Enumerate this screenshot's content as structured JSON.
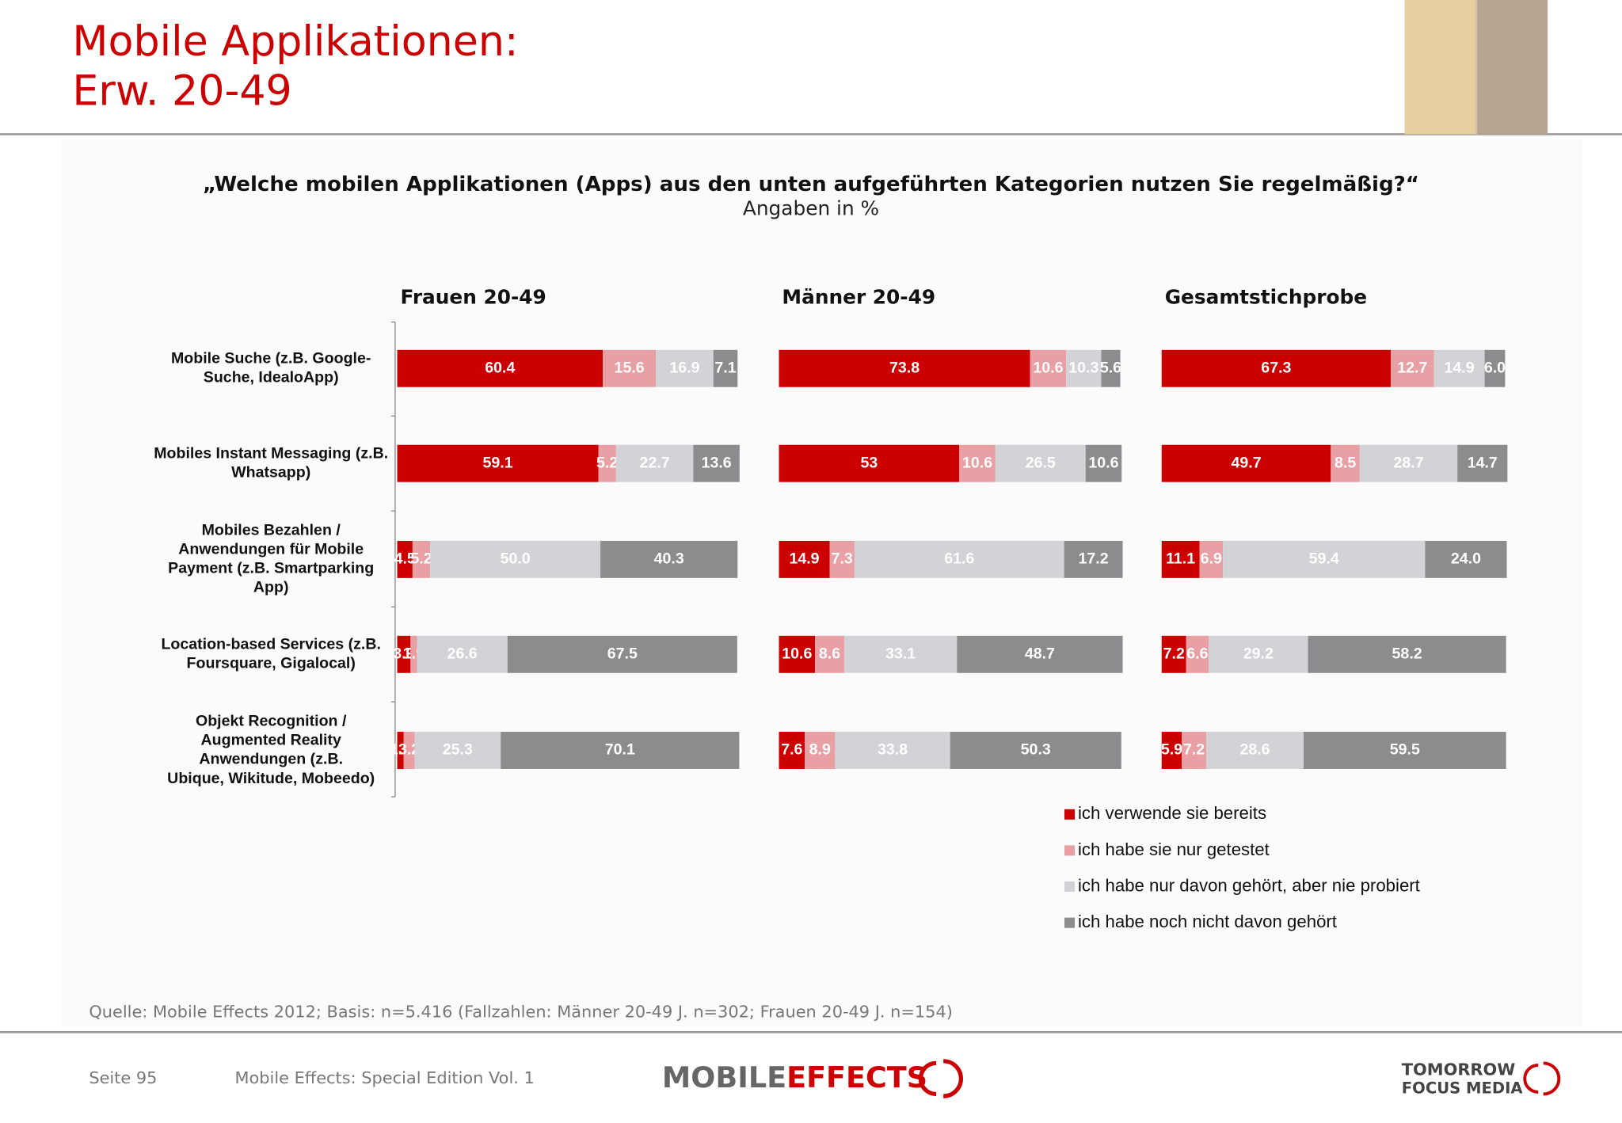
{
  "title": [
    "Mobile Applikationen:",
    "Erw. 20-49"
  ],
  "question": "„Welche mobilen Applikationen (Apps) aus den unten aufgeführten Kategorien nutzen Sie regelmäßig?“",
  "subtitle": "Angaben in %",
  "source": "Quelle: Mobile Effects 2012; Basis: n=5.416 (Fallzahlen: Männer 20-49 J. n=302; Frauen 20-49 J. n=154)",
  "footer": {
    "page": "Seite 95",
    "edition": "Mobile Effects: Special Edition Vol. 1",
    "logo_left": [
      "MOBILE",
      "EFFECTS"
    ],
    "logo_right": [
      "TOMORROW",
      "FOCUS MEDIA"
    ]
  },
  "chart_data": [
    {
      "type": "stacked-barh",
      "title": "Frauen 20-49",
      "xlim": [
        0,
        100
      ],
      "categories": [
        [
          "Mobile Suche (z.B. Google-",
          "Suche, IdealoApp)"
        ],
        [
          "Mobiles Instant Messaging (z.B.",
          "Whatsapp)"
        ],
        [
          "Mobiles Bezahlen /",
          "Anwendungen für Mobile",
          "Payment (z.B. Smartparking",
          "App)"
        ],
        [
          "Location-based Services (z.B.",
          "Foursquare, Gigalocal)"
        ],
        [
          "Objekt Recognition /",
          "Augmented Reality",
          "Anwendungen (z.B.",
          "Ubique, Wikitude, Mobeedo)"
        ]
      ],
      "series": [
        {
          "name": "ich verwende sie bereits",
          "color": "#cc0000",
          "values": [
            60.4,
            59.1,
            4.5,
            3.9,
            1.9
          ],
          "value_labels": [
            "60.4",
            "59.1",
            "4.5",
            "3.9",
            "1.9"
          ]
        },
        {
          "name": "ich habe sie nur getestet",
          "color": "#e8a0a4",
          "values": [
            15.6,
            5.2,
            5.2,
            1.9,
            3.2
          ],
          "value_labels": [
            "15.6",
            "5.2",
            "5.2",
            "1.9",
            "3.2"
          ]
        },
        {
          "name": "ich habe nur davon gehört, aber nie probiert",
          "color": "#d3d3d7",
          "values": [
            16.9,
            22.7,
            50.0,
            26.6,
            25.3
          ],
          "value_labels": [
            "16.9",
            "22.7",
            "50.0",
            "26.6",
            "25.3"
          ]
        },
        {
          "name": "ich habe noch nicht davon gehört",
          "color": "#8c8c8e",
          "values": [
            7.1,
            13.6,
            40.3,
            67.5,
            70.1
          ],
          "value_labels": [
            "7.1",
            "13.6",
            "40.3",
            "67.5",
            "70.1"
          ]
        }
      ]
    },
    {
      "type": "stacked-barh",
      "title": "Männer 20-49",
      "xlim": [
        0,
        100
      ],
      "series": [
        {
          "color": "#cc0000",
          "values": [
            73.8,
            53,
            14.9,
            10.6,
            7.6
          ],
          "value_labels": [
            "73.8",
            "53",
            "14.9",
            "10.6",
            "7.6"
          ]
        },
        {
          "color": "#e8a0a4",
          "values": [
            10.6,
            10.6,
            7.3,
            8.6,
            8.9
          ],
          "value_labels": [
            "10.6",
            "10.6",
            "7.3",
            "8.6",
            "8.9"
          ]
        },
        {
          "color": "#d3d3d7",
          "values": [
            10.3,
            26.5,
            61.6,
            33.1,
            33.8
          ],
          "value_labels": [
            "10.3",
            "26.5",
            "61.6",
            "33.1",
            "33.8"
          ]
        },
        {
          "color": "#8c8c8e",
          "values": [
            5.6,
            10.6,
            17.2,
            48.7,
            50.3
          ],
          "value_labels": [
            "5.6",
            "10.6",
            "17.2",
            "48.7",
            "50.3"
          ]
        }
      ]
    },
    {
      "type": "stacked-barh",
      "title": "Gesamtstichprobe",
      "xlim": [
        0,
        100
      ],
      "series": [
        {
          "color": "#cc0000",
          "values": [
            67.3,
            49.7,
            11.1,
            7.2,
            5.9
          ],
          "value_labels": [
            "67.3",
            "49.7",
            "11.1",
            "7.2",
            "5.9"
          ]
        },
        {
          "color": "#e8a0a4",
          "values": [
            12.7,
            8.5,
            6.9,
            6.6,
            7.2
          ],
          "value_labels": [
            "12.7",
            "8.5",
            "6.9",
            "6.6",
            "7.2"
          ]
        },
        {
          "color": "#d3d3d7",
          "values": [
            14.9,
            28.7,
            59.4,
            29.2,
            28.6
          ],
          "value_labels": [
            "14.9",
            "28.7",
            "59.4",
            "29.2",
            "28.6"
          ]
        },
        {
          "color": "#8c8c8e",
          "values": [
            6.0,
            14.7,
            24.0,
            58.2,
            59.5
          ],
          "value_labels": [
            "6.0",
            "14.7",
            "24.0",
            "58.2",
            "59.5"
          ]
        }
      ]
    }
  ]
}
